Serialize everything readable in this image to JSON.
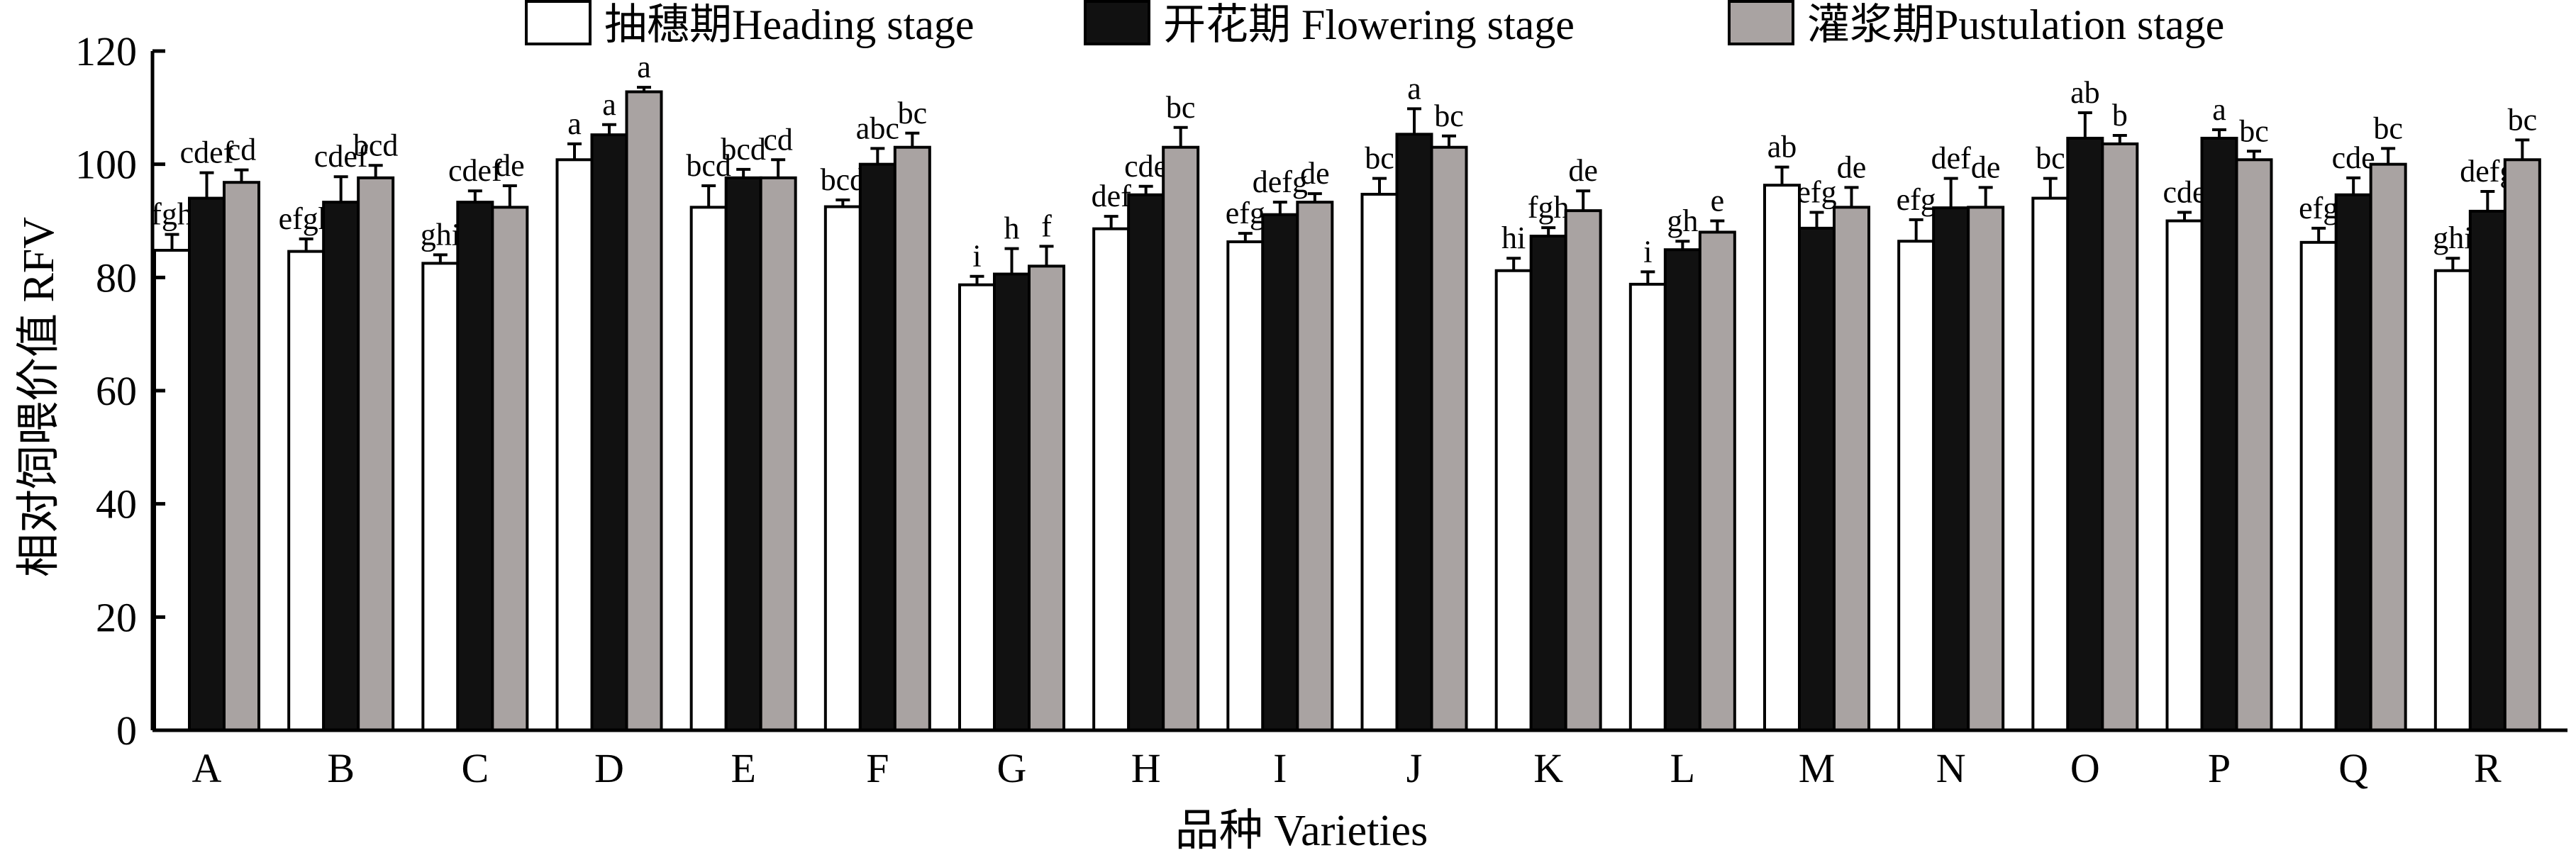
{
  "chart_data": {
    "type": "bar",
    "title": "",
    "xlabel": "品种 Varieties",
    "ylabel": "相对饲喂价值 RFV",
    "ylim": [
      0,
      120
    ],
    "yticks": [
      0,
      20,
      40,
      60,
      80,
      100,
      120
    ],
    "grid": false,
    "legend_position": "top",
    "categories": [
      "A",
      "B",
      "C",
      "D",
      "E",
      "F",
      "G",
      "H",
      "I",
      "J",
      "K",
      "L",
      "M",
      "N",
      "O",
      "P",
      "Q",
      "R"
    ],
    "series": [
      {
        "name": "抽穗期Heading stage",
        "color": "#ffffff",
        "values": [
          84.8,
          84.6,
          82.5,
          100.8,
          92.4,
          92.5,
          78.7,
          88.6,
          86.3,
          94.7,
          81.2,
          78.8,
          96.3,
          86.4,
          94.0,
          90.0,
          86.2,
          81.2
        ],
        "errors": [
          2.8,
          2.2,
          1.5,
          2.8,
          3.8,
          1.2,
          1.5,
          2.2,
          1.5,
          2.8,
          2.2,
          2.2,
          3.2,
          3.8,
          3.5,
          1.5,
          2.5,
          2.2
        ],
        "labels": [
          "fgh",
          "efgh",
          "ghi",
          "a",
          "bcd",
          "bcd",
          "i",
          "def",
          "efg",
          "bc",
          "hi",
          "i",
          "ab",
          "efg",
          "bc",
          "cde",
          "efg",
          "ghi"
        ]
      },
      {
        "name": "开花期 Flowering stage",
        "color": "#111111",
        "values": [
          94.0,
          93.3,
          93.3,
          105.2,
          97.6,
          100.0,
          80.6,
          94.6,
          91.1,
          105.3,
          87.3,
          84.9,
          88.7,
          92.3,
          104.6,
          104.6,
          94.6,
          91.7
        ],
        "errors": [
          4.5,
          4.5,
          2.0,
          1.8,
          1.5,
          2.8,
          4.5,
          1.5,
          2.2,
          4.5,
          1.5,
          1.5,
          2.8,
          5.2,
          4.5,
          1.5,
          3.0,
          3.5
        ],
        "labels": [
          "cdef",
          "cdef",
          "cdef",
          "a",
          "bcd",
          "abc",
          "h",
          "cde",
          "defg",
          "a",
          "fgh",
          "gh",
          "efg",
          "def",
          "ab",
          "a",
          "cde",
          "defg"
        ]
      },
      {
        "name": "灌浆期Pustulation stage",
        "color": "#a9a3a2",
        "values": [
          96.8,
          97.6,
          92.4,
          112.8,
          97.6,
          103.0,
          82.0,
          103.0,
          93.3,
          103.0,
          91.8,
          88.0,
          92.4,
          92.4,
          103.6,
          100.8,
          100.0,
          100.8
        ],
        "errors": [
          2.2,
          2.2,
          3.8,
          0.8,
          3.2,
          2.5,
          3.5,
          3.5,
          1.5,
          2.0,
          3.5,
          2.0,
          3.5,
          3.5,
          1.5,
          1.5,
          2.8,
          3.5
        ],
        "labels": [
          "cd",
          "bcd",
          "de",
          "a",
          "cd",
          "bc",
          "f",
          "bc",
          "de",
          "bc",
          "de",
          "e",
          "de",
          "de",
          "b",
          "bc",
          "bc",
          "bc"
        ]
      }
    ]
  }
}
